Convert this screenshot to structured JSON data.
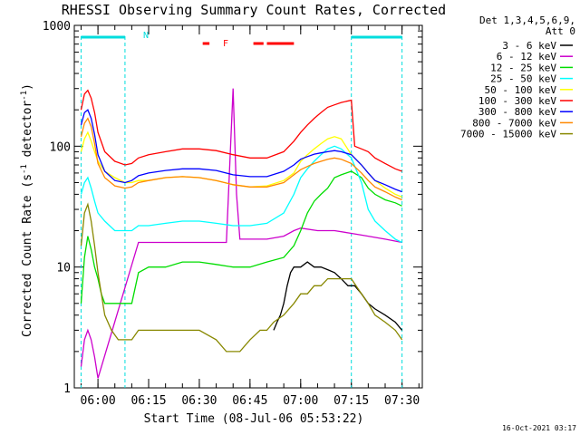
{
  "chart_data": {
    "type": "line",
    "title": "RHESSI Observing Summary Count Rates, Corrected",
    "xlabel": "Start Time (08-Jul-06 05:53:22)",
    "ylabel": "Corrected Count Rate (s⁻¹ detector⁻¹)",
    "ylabel_main": "Corrected Count Rate (s",
    "ylabel_mid": " detector",
    "ylabel_end": ")",
    "ylabel_exp": "-1",
    "yscale": "log",
    "ylim": [
      1,
      1000
    ],
    "xlim_minutes": [
      -7,
      96
    ],
    "x_ticks": [
      {
        "label": "06:00",
        "m": 0
      },
      {
        "label": "06:15",
        "m": 15
      },
      {
        "label": "06:30",
        "m": 30
      },
      {
        "label": "06:45",
        "m": 45
      },
      {
        "label": "07:00",
        "m": 60
      },
      {
        "label": "07:15",
        "m": 75
      },
      {
        "label": "07:30",
        "m": 90
      }
    ],
    "y_ticks": [
      {
        "label": "1",
        "v": 1
      },
      {
        "label": "10",
        "v": 10
      },
      {
        "label": "100",
        "v": 100
      },
      {
        "label": "1000",
        "v": 1000
      }
    ],
    "legend": {
      "header1": "Det 1,3,4,5,6,9,",
      "header2": "Att 0",
      "placement": "right"
    },
    "series": [
      {
        "name": "3 - 6 keV",
        "color": "#000000",
        "points": [
          [
            52,
            3
          ],
          [
            53,
            3.5
          ],
          [
            54,
            4
          ],
          [
            55,
            5
          ],
          [
            56,
            7
          ],
          [
            57,
            9
          ],
          [
            58,
            10
          ],
          [
            60,
            10
          ],
          [
            62,
            11
          ],
          [
            64,
            10
          ],
          [
            66,
            10
          ],
          [
            68,
            9.5
          ],
          [
            70,
            9
          ],
          [
            72,
            8
          ],
          [
            74,
            7
          ],
          [
            76,
            7
          ],
          [
            78,
            6
          ],
          [
            80,
            5
          ],
          [
            82,
            4.5
          ],
          [
            85,
            4
          ],
          [
            88,
            3.5
          ],
          [
            90,
            3
          ]
        ]
      },
      {
        "name": "6 - 12 keV",
        "color": "#cc00cc",
        "points": [
          [
            -5,
            1.5
          ],
          [
            -4,
            2.5
          ],
          [
            -3,
            3
          ],
          [
            -2,
            2.5
          ],
          [
            -1,
            1.8
          ],
          [
            0,
            1.2
          ],
          [
            12,
            16
          ],
          [
            15,
            16
          ],
          [
            20,
            16
          ],
          [
            25,
            16
          ],
          [
            30,
            16
          ],
          [
            35,
            16
          ],
          [
            38,
            16
          ],
          [
            40,
            300
          ],
          [
            41,
            40
          ],
          [
            42,
            17
          ],
          [
            45,
            17
          ],
          [
            50,
            17
          ],
          [
            55,
            18
          ],
          [
            58,
            20
          ],
          [
            60,
            21
          ],
          [
            65,
            20
          ],
          [
            70,
            20
          ],
          [
            75,
            19
          ],
          [
            80,
            18
          ],
          [
            85,
            17
          ],
          [
            90,
            16
          ]
        ]
      },
      {
        "name": "12 - 25 keV",
        "color": "#00dd00",
        "points": [
          [
            -5,
            5
          ],
          [
            -4,
            12
          ],
          [
            -3,
            18
          ],
          [
            -2,
            14
          ],
          [
            -1,
            10
          ],
          [
            0,
            8
          ],
          [
            1,
            6
          ],
          [
            2,
            5
          ],
          [
            5,
            5
          ],
          [
            8,
            5
          ],
          [
            10,
            5
          ],
          [
            12,
            9
          ],
          [
            15,
            10
          ],
          [
            20,
            10
          ],
          [
            25,
            11
          ],
          [
            30,
            11
          ],
          [
            35,
            10.5
          ],
          [
            40,
            10
          ],
          [
            45,
            10
          ],
          [
            50,
            11
          ],
          [
            55,
            12
          ],
          [
            58,
            15
          ],
          [
            60,
            20
          ],
          [
            62,
            28
          ],
          [
            64,
            35
          ],
          [
            66,
            40
          ],
          [
            68,
            45
          ],
          [
            70,
            55
          ],
          [
            72,
            58
          ],
          [
            75,
            62
          ],
          [
            78,
            55
          ],
          [
            80,
            45
          ],
          [
            82,
            40
          ],
          [
            85,
            36
          ],
          [
            88,
            34
          ],
          [
            90,
            32
          ]
        ]
      },
      {
        "name": "25 - 50 keV",
        "color": "#00ffff",
        "points": [
          [
            -5,
            40
          ],
          [
            -4,
            50
          ],
          [
            -3,
            55
          ],
          [
            -2,
            45
          ],
          [
            -1,
            35
          ],
          [
            0,
            28
          ],
          [
            2,
            24
          ],
          [
            5,
            20
          ],
          [
            8,
            20
          ],
          [
            10,
            20
          ],
          [
            12,
            22
          ],
          [
            15,
            22
          ],
          [
            20,
            23
          ],
          [
            25,
            24
          ],
          [
            30,
            24
          ],
          [
            35,
            23
          ],
          [
            40,
            22
          ],
          [
            45,
            22
          ],
          [
            50,
            23
          ],
          [
            55,
            28
          ],
          [
            58,
            40
          ],
          [
            60,
            55
          ],
          [
            62,
            65
          ],
          [
            64,
            75
          ],
          [
            66,
            85
          ],
          [
            68,
            95
          ],
          [
            70,
            100
          ],
          [
            72,
            95
          ],
          [
            75,
            80
          ],
          [
            78,
            50
          ],
          [
            80,
            30
          ],
          [
            82,
            24
          ],
          [
            85,
            20
          ],
          [
            88,
            17
          ],
          [
            90,
            16
          ]
        ]
      },
      {
        "name": "50 - 100 keV",
        "color": "#ffff00",
        "points": [
          [
            -5,
            90
          ],
          [
            -4,
            115
          ],
          [
            -3,
            130
          ],
          [
            -2,
            110
          ],
          [
            -1,
            90
          ],
          [
            0,
            75
          ],
          [
            2,
            62
          ],
          [
            5,
            55
          ],
          [
            8,
            50
          ],
          [
            10,
            50
          ],
          [
            12,
            52
          ],
          [
            15,
            52
          ],
          [
            20,
            55
          ],
          [
            25,
            56
          ],
          [
            30,
            55
          ],
          [
            35,
            52
          ],
          [
            40,
            48
          ],
          [
            45,
            46
          ],
          [
            50,
            47
          ],
          [
            55,
            52
          ],
          [
            58,
            60
          ],
          [
            60,
            75
          ],
          [
            62,
            85
          ],
          [
            64,
            95
          ],
          [
            66,
            105
          ],
          [
            68,
            115
          ],
          [
            70,
            120
          ],
          [
            72,
            115
          ],
          [
            75,
            85
          ],
          [
            78,
            70
          ],
          [
            80,
            60
          ],
          [
            82,
            52
          ],
          [
            85,
            45
          ],
          [
            88,
            40
          ],
          [
            90,
            38
          ]
        ]
      },
      {
        "name": "100 - 300 keV",
        "color": "#ff0000",
        "points": [
          [
            -5,
            200
          ],
          [
            -4,
            270
          ],
          [
            -3,
            290
          ],
          [
            -2,
            250
          ],
          [
            -1,
            190
          ],
          [
            0,
            130
          ],
          [
            2,
            90
          ],
          [
            5,
            75
          ],
          [
            8,
            70
          ],
          [
            10,
            72
          ],
          [
            12,
            80
          ],
          [
            15,
            85
          ],
          [
            20,
            90
          ],
          [
            25,
            95
          ],
          [
            30,
            95
          ],
          [
            35,
            92
          ],
          [
            40,
            85
          ],
          [
            45,
            80
          ],
          [
            50,
            80
          ],
          [
            55,
            90
          ],
          [
            58,
            110
          ],
          [
            60,
            130
          ],
          [
            62,
            150
          ],
          [
            64,
            170
          ],
          [
            66,
            190
          ],
          [
            68,
            210
          ],
          [
            70,
            220
          ],
          [
            72,
            230
          ],
          [
            75,
            240
          ],
          [
            76,
            100
          ],
          [
            78,
            95
          ],
          [
            80,
            90
          ],
          [
            82,
            80
          ],
          [
            85,
            72
          ],
          [
            88,
            65
          ],
          [
            90,
            62
          ]
        ]
      },
      {
        "name": "300 - 800 keV",
        "color": "#0000ff",
        "points": [
          [
            -5,
            150
          ],
          [
            -4,
            190
          ],
          [
            -3,
            200
          ],
          [
            -2,
            170
          ],
          [
            -1,
            125
          ],
          [
            0,
            85
          ],
          [
            2,
            62
          ],
          [
            5,
            52
          ],
          [
            8,
            50
          ],
          [
            10,
            52
          ],
          [
            12,
            57
          ],
          [
            15,
            60
          ],
          [
            20,
            63
          ],
          [
            25,
            65
          ],
          [
            30,
            65
          ],
          [
            35,
            63
          ],
          [
            40,
            58
          ],
          [
            45,
            56
          ],
          [
            50,
            56
          ],
          [
            55,
            62
          ],
          [
            58,
            70
          ],
          [
            60,
            78
          ],
          [
            62,
            82
          ],
          [
            64,
            86
          ],
          [
            66,
            88
          ],
          [
            68,
            90
          ],
          [
            70,
            92
          ],
          [
            72,
            90
          ],
          [
            75,
            85
          ],
          [
            78,
            70
          ],
          [
            80,
            60
          ],
          [
            82,
            52
          ],
          [
            85,
            48
          ],
          [
            88,
            44
          ],
          [
            90,
            42
          ]
        ]
      },
      {
        "name": "800 - 7000 keV",
        "color": "#ff8800",
        "points": [
          [
            -5,
            120
          ],
          [
            -4,
            155
          ],
          [
            -3,
            170
          ],
          [
            -2,
            145
          ],
          [
            -1,
            105
          ],
          [
            0,
            72
          ],
          [
            2,
            55
          ],
          [
            5,
            47
          ],
          [
            8,
            45
          ],
          [
            10,
            46
          ],
          [
            12,
            50
          ],
          [
            15,
            52
          ],
          [
            20,
            55
          ],
          [
            25,
            56
          ],
          [
            30,
            55
          ],
          [
            35,
            52
          ],
          [
            40,
            48
          ],
          [
            45,
            46
          ],
          [
            50,
            46
          ],
          [
            55,
            50
          ],
          [
            58,
            58
          ],
          [
            60,
            64
          ],
          [
            62,
            68
          ],
          [
            64,
            72
          ],
          [
            66,
            75
          ],
          [
            68,
            78
          ],
          [
            70,
            80
          ],
          [
            72,
            78
          ],
          [
            75,
            72
          ],
          [
            78,
            60
          ],
          [
            80,
            52
          ],
          [
            82,
            46
          ],
          [
            85,
            42
          ],
          [
            88,
            38
          ],
          [
            90,
            36
          ]
        ]
      },
      {
        "name": "7000 - 15000 keV",
        "color": "#888800",
        "points": [
          [
            -5,
            15
          ],
          [
            -4,
            28
          ],
          [
            -3,
            33
          ],
          [
            -2,
            24
          ],
          [
            -1,
            15
          ],
          [
            0,
            9
          ],
          [
            1,
            6
          ],
          [
            2,
            4
          ],
          [
            4,
            3
          ],
          [
            6,
            2.5
          ],
          [
            8,
            2.5
          ],
          [
            10,
            2.5
          ],
          [
            12,
            3
          ],
          [
            15,
            3
          ],
          [
            20,
            3
          ],
          [
            25,
            3
          ],
          [
            30,
            3
          ],
          [
            35,
            2.5
          ],
          [
            38,
            2
          ],
          [
            40,
            2
          ],
          [
            42,
            2
          ],
          [
            45,
            2.5
          ],
          [
            48,
            3
          ],
          [
            50,
            3
          ],
          [
            52,
            3.5
          ],
          [
            55,
            4
          ],
          [
            58,
            5
          ],
          [
            60,
            6
          ],
          [
            62,
            6
          ],
          [
            64,
            7
          ],
          [
            66,
            7
          ],
          [
            68,
            8
          ],
          [
            70,
            8
          ],
          [
            72,
            8
          ],
          [
            75,
            8
          ],
          [
            78,
            6
          ],
          [
            80,
            5
          ],
          [
            82,
            4
          ],
          [
            85,
            3.5
          ],
          [
            88,
            3
          ],
          [
            90,
            2.5
          ]
        ]
      }
    ],
    "annotations": {
      "N": "N",
      "F": "F",
      "cyan_bars": [
        [
          -5,
          8
        ],
        [
          75,
          90
        ]
      ],
      "red_bars": [
        [
          31,
          33
        ],
        [
          46,
          49
        ],
        [
          50,
          58
        ]
      ]
    },
    "footer_date": "16-Oct-2021 03:17"
  }
}
